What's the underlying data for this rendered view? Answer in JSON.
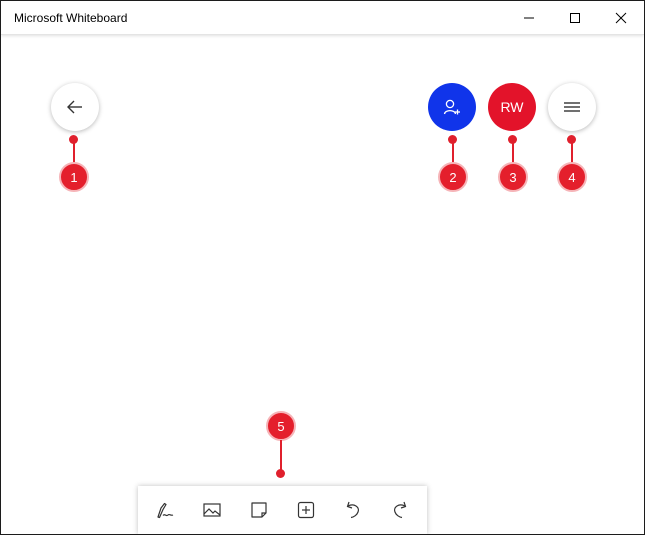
{
  "window": {
    "title": "Microsoft Whiteboard",
    "controls": [
      "minimize-icon",
      "maximize-icon",
      "close-icon"
    ]
  },
  "header_actions": {
    "back": "arrow-left-icon",
    "invite": "add-person-icon",
    "avatar_initials": "RW",
    "menu": "hamburger-icon"
  },
  "callouts": [
    "1",
    "2",
    "3",
    "4",
    "5"
  ],
  "toolbar": {
    "tools": [
      "inking-icon",
      "image-icon",
      "note-icon",
      "add-icon",
      "undo-icon",
      "redo-icon"
    ]
  },
  "colors": {
    "invite": "#1034ea",
    "avatar": "#e3132a",
    "callout": "#e41f2c"
  }
}
